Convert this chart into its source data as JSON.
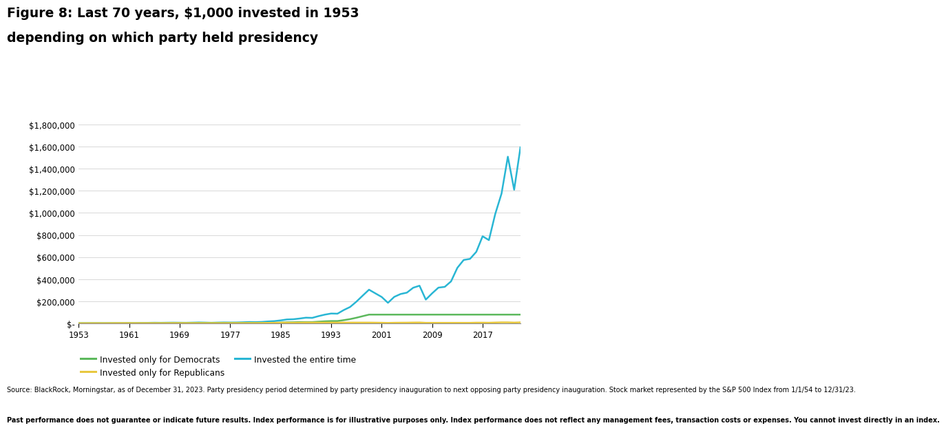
{
  "title_line1": "Figure 8: Last 70 years, $1,000 invested in 1953",
  "title_line2": "depending on which party held presidency",
  "years": [
    1953,
    1954,
    1955,
    1956,
    1957,
    1958,
    1959,
    1960,
    1961,
    1962,
    1963,
    1964,
    1965,
    1966,
    1967,
    1968,
    1969,
    1970,
    1971,
    1972,
    1973,
    1974,
    1975,
    1976,
    1977,
    1978,
    1979,
    1980,
    1981,
    1982,
    1983,
    1984,
    1985,
    1986,
    1987,
    1988,
    1989,
    1990,
    1991,
    1992,
    1993,
    1994,
    1995,
    1996,
    1997,
    1998,
    1999,
    2000,
    2001,
    2002,
    2003,
    2004,
    2005,
    2006,
    2007,
    2008,
    2009,
    2010,
    2011,
    2012,
    2013,
    2014,
    2015,
    2016,
    2017,
    2018,
    2019,
    2020,
    2021,
    2022,
    2023
  ],
  "democrat_only": [
    1000,
    1000,
    1000,
    1000,
    1000,
    1000,
    1000,
    1000,
    1310,
    1310,
    1640,
    1970,
    2380,
    2380,
    2900,
    3270,
    3270,
    3270,
    4050,
    4920,
    4920,
    4920,
    4920,
    4920,
    4920,
    4920,
    4920,
    4920,
    4920,
    4920,
    4920,
    4920,
    7060,
    9290,
    9780,
    11460,
    11460,
    11460,
    15440,
    18660,
    21000,
    21000,
    29310,
    38540,
    51000,
    65220,
    79200,
    79200,
    79200,
    79200,
    79200,
    79200,
    79200,
    79200,
    79200,
    79200,
    79200,
    79200,
    79200,
    79200,
    79200,
    79200,
    79200,
    79200,
    79200,
    79200,
    79200,
    79200,
    79200,
    79200,
    79200
  ],
  "republican_only": [
    1000,
    1260,
    1590,
    1680,
    1540,
    1980,
    2440,
    2520,
    2520,
    2380,
    2380,
    2380,
    2380,
    2100,
    2370,
    2650,
    2350,
    2110,
    2110,
    2110,
    1800,
    1320,
    1810,
    2150,
    1990,
    2120,
    2580,
    3270,
    3000,
    3480,
    4640,
    5470,
    5470,
    5470,
    5470,
    6380,
    7490,
    7260,
    7260,
    7260,
    7260,
    7150,
    7150,
    7150,
    7150,
    7150,
    7150,
    6400,
    5640,
    4390,
    5650,
    6250,
    6560,
    7600,
    8050,
    5100,
    5100,
    5100,
    5100,
    5100,
    5100,
    5100,
    5100,
    6500,
    6500,
    5870,
    7680,
    9150,
    9150,
    7240,
    9150
  ],
  "entire_time": [
    1000,
    1260,
    1590,
    1680,
    1540,
    1980,
    2440,
    2520,
    3300,
    3120,
    3900,
    4690,
    5670,
    5020,
    5880,
    6580,
    5840,
    5250,
    6490,
    7880,
    6720,
    4950,
    6770,
    8050,
    7450,
    7940,
    9670,
    12250,
    11240,
    13040,
    17380,
    20480,
    27010,
    35540,
    37350,
    43750,
    51430,
    49850,
    65500,
    79170,
    89150,
    87660,
    120680,
    148270,
    196600,
    251300,
    304900,
    271900,
    239300,
    186200,
    239900,
    265700,
    278200,
    322500,
    341000,
    215200,
    271900,
    323600,
    330500,
    380200,
    503000,
    574000,
    583600,
    647700,
    788400,
    753700,
    990000,
    1175000,
    1509000,
    1210000,
    1594000
  ],
  "xticks": [
    1953,
    1961,
    1969,
    1977,
    1985,
    1993,
    2001,
    2009,
    2017
  ],
  "yticks": [
    0,
    200000,
    400000,
    600000,
    800000,
    1000000,
    1200000,
    1400000,
    1600000,
    1800000
  ],
  "ylim": [
    0,
    1900000
  ],
  "xlim": [
    1953,
    2023
  ],
  "color_democrat": "#5cb85c",
  "color_republican": "#e8c840",
  "color_entire": "#29b6d4",
  "line_width": 1.8,
  "background_color": "#ffffff",
  "grid_color": "#d8d8d8",
  "footnote_normal": "Source: BlackRock, Morningstar, as of December 31, 2023. Party presidency period determined by party presidency inauguration to next opposing party presidency inauguration. Stock market represented by the S&P 500 Index from 1/1/54 to 12/31/23. ",
  "footnote_bold": "Past performance does not guarantee or indicate future results. Index performance is for illustrative purposes only. Index performance does not reflect any management fees, transaction costs or expenses. You cannot invest directly in an index."
}
